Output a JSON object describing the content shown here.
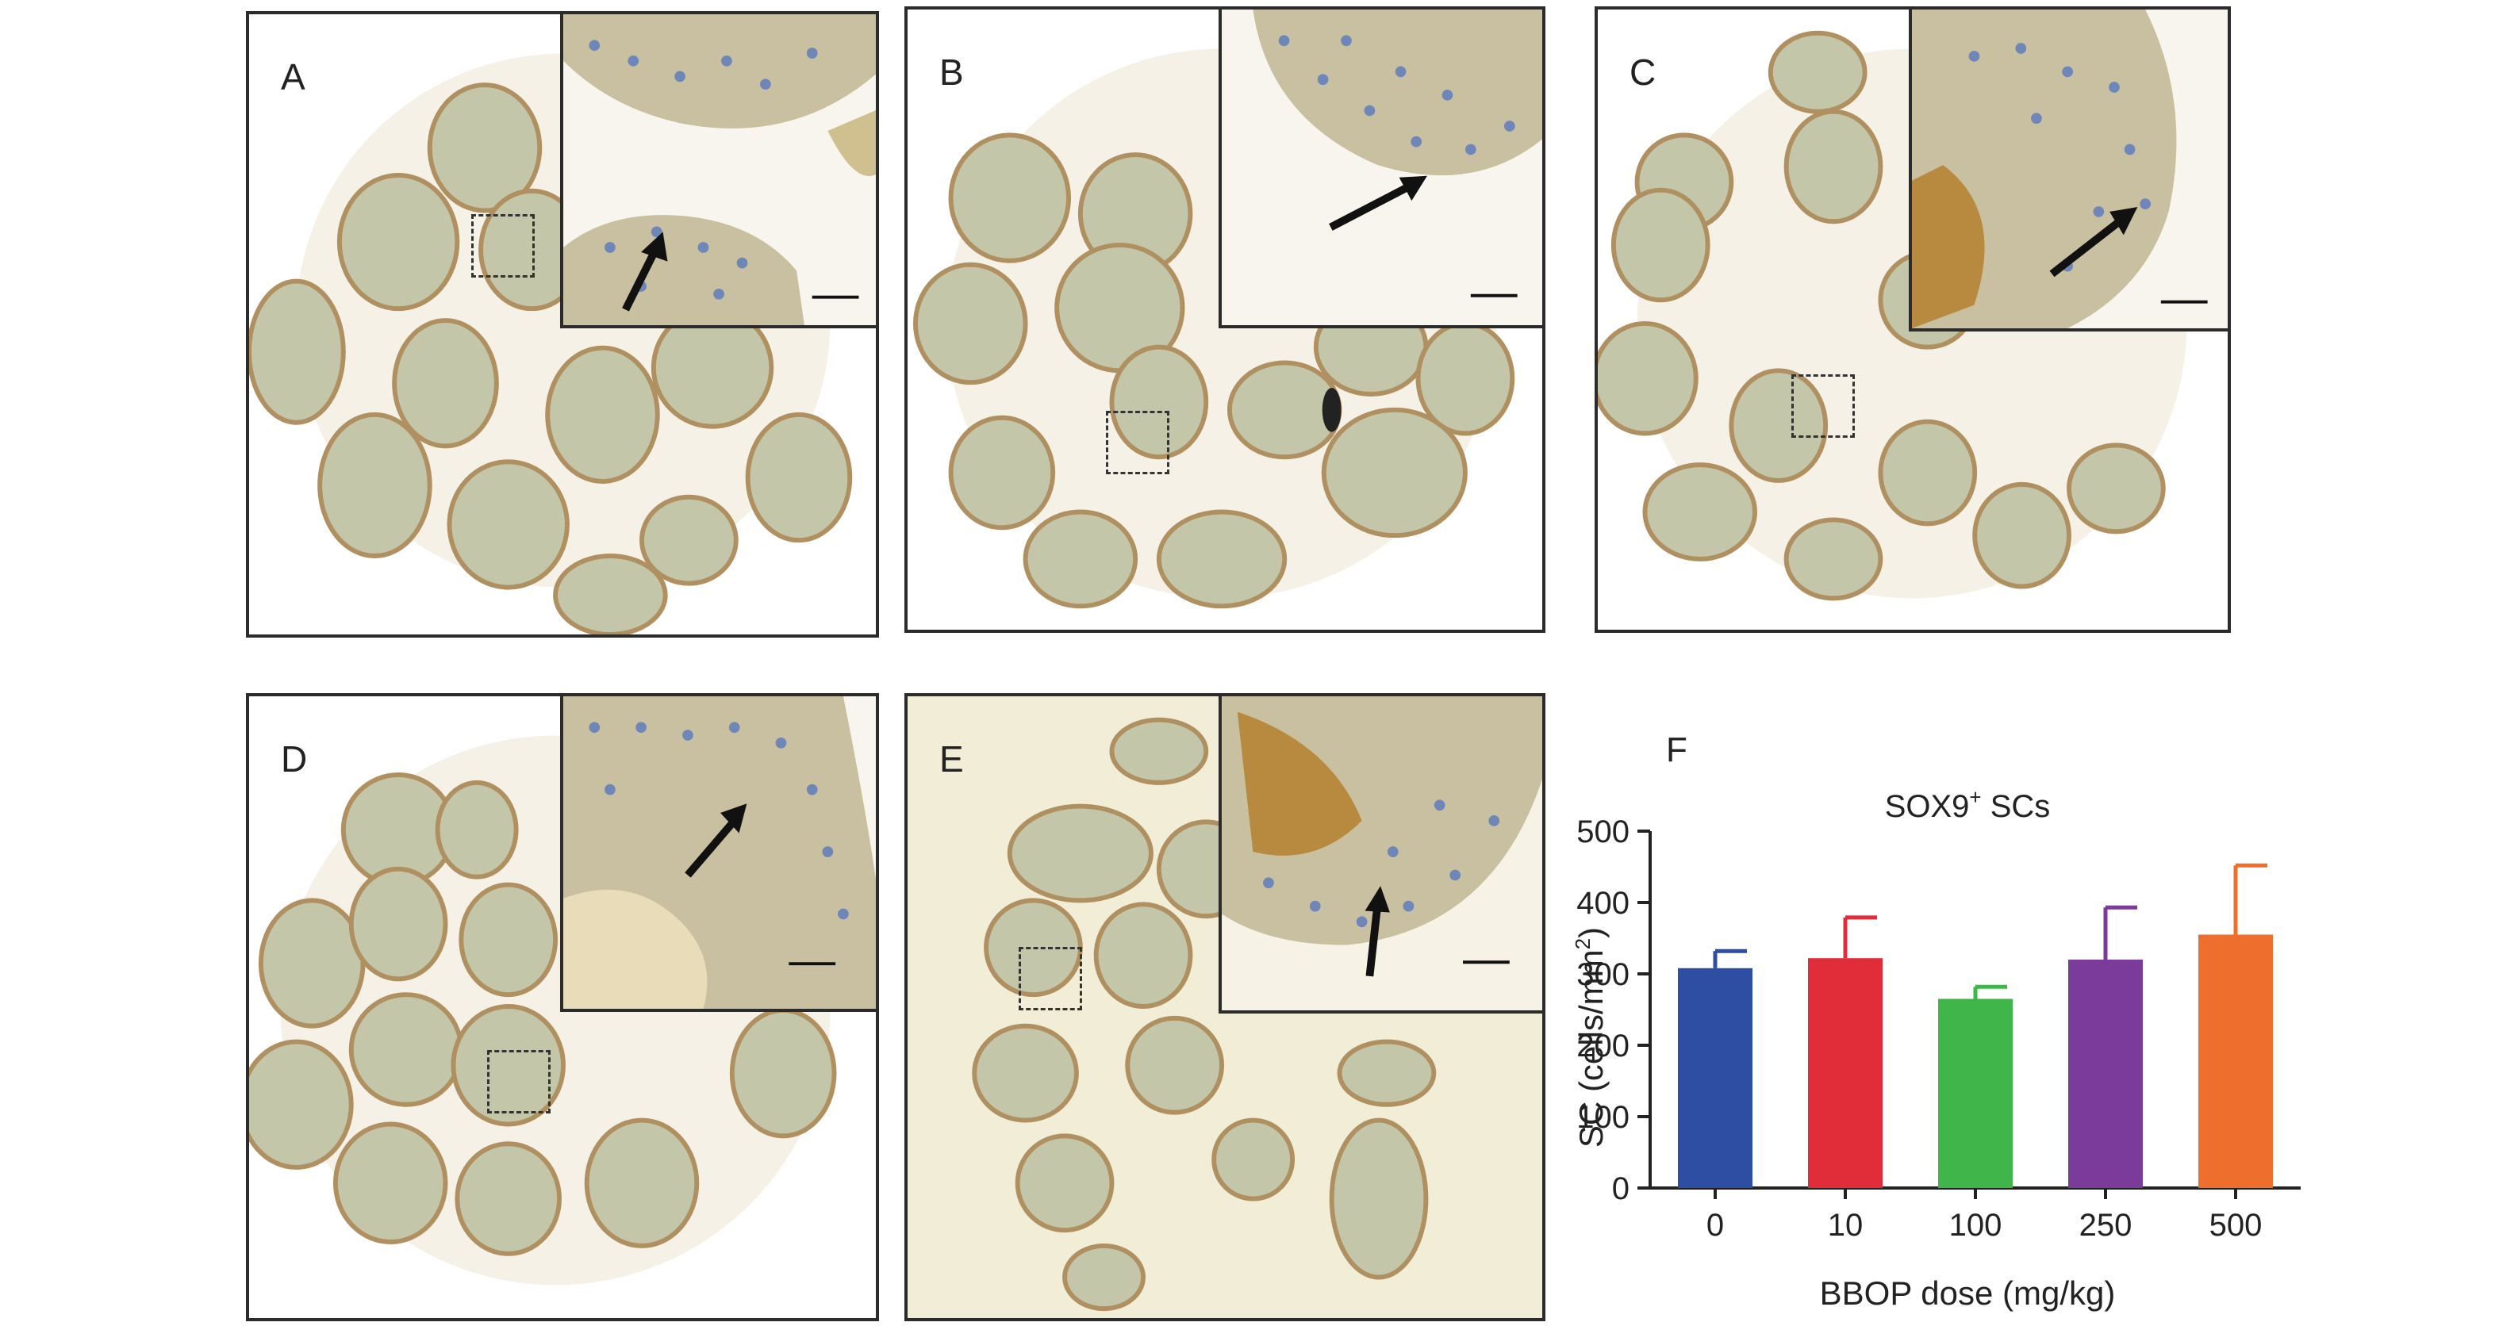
{
  "panels": [
    {
      "id": "A",
      "label": "A"
    },
    {
      "id": "B",
      "label": "B"
    },
    {
      "id": "C",
      "label": "C"
    },
    {
      "id": "D",
      "label": "D"
    },
    {
      "id": "E",
      "label": "E"
    }
  ],
  "chart_label": "F",
  "chart_data": {
    "type": "bar",
    "title_main": "SOX9",
    "title_sup": "+",
    "title_rest": " SCs",
    "ylabel_main": "SC (cells/mm",
    "ylabel_sup": "2",
    "ylabel_end": ")",
    "xlabel": "BBOP dose (mg/kg)",
    "categories": [
      "0",
      "10",
      "100",
      "250",
      "500"
    ],
    "values": [
      308,
      322,
      265,
      320,
      355
    ],
    "errors": [
      24,
      57,
      17,
      73,
      97
    ],
    "colors": [
      "#2e4ea3",
      "#e12d39",
      "#3fb54a",
      "#7a3b9a",
      "#ee6f2d"
    ],
    "ylim": [
      0,
      500
    ],
    "yticks": [
      0,
      100,
      200,
      300,
      400,
      500
    ]
  }
}
